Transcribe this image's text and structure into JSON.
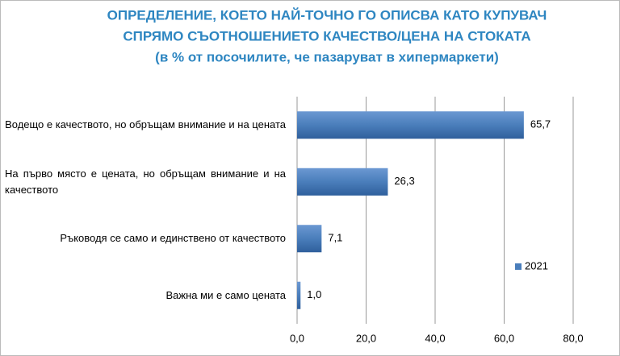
{
  "chart_data": {
    "type": "bar",
    "orientation": "horizontal",
    "title": [
      "ОПРЕДЕЛЕНИЕ, КОЕТО НАЙ-ТОЧНО ГО ОПИСВА КАТО КУПУВАЧ",
      "СПРЯМО СЪОТНОШЕНИЕТО КАЧЕСТВО/ЦЕНА НА СТОКАТА",
      "(в % от посочилите, че пазаруват в хипермаркети)"
    ],
    "categories": [
      "Водещо е качеството, но обръщам внимание и на цената",
      "На първо място е цената, но обръщам внимание и на качеството",
      "Ръководя се само и единствено от качеството",
      "Важна ми е само цената"
    ],
    "series": [
      {
        "name": "2021",
        "color": "#4a7ebb",
        "values": [
          65.7,
          26.3,
          7.1,
          1.0
        ],
        "value_labels": [
          "65,7",
          "26,3",
          "7,1",
          "1,0"
        ]
      }
    ],
    "xlim": [
      0,
      80
    ],
    "xticks": [
      {
        "value": 0,
        "label": "0,0"
      },
      {
        "value": 20,
        "label": "20,0"
      },
      {
        "value": 40,
        "label": "40,0"
      },
      {
        "value": 60,
        "label": "60,0"
      },
      {
        "value": 80,
        "label": "80,0"
      }
    ],
    "grid": true,
    "legend": "right"
  }
}
